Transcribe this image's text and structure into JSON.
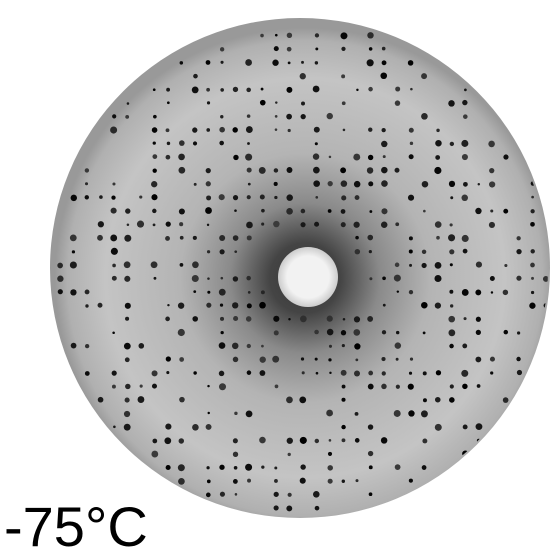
{
  "label": "-75°C"
}
